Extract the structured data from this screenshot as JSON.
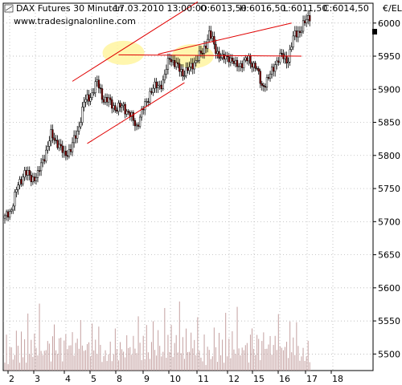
{
  "header": {
    "instrument": "DAX Futures 30 Minuten",
    "datetime": "17.03.2010 13:00:00",
    "open_label": "O:6013,50",
    "high_label": "H:6016,50",
    "low_label": "L:6011,50",
    "close_label": "C:6014,50",
    "url": "www.tradesignalonline.com",
    "close_color": "#00a000"
  },
  "chart_data": {
    "type": "candlestick",
    "currency": "€/EL",
    "ylim": [
      5475,
      6030
    ],
    "yticks": [
      5500,
      5550,
      5600,
      5650,
      5700,
      5750,
      5800,
      5850,
      5900,
      5950,
      6000
    ],
    "x_tick_labels": [
      "2",
      "3",
      "4",
      "5",
      "8",
      "9",
      "10",
      "11",
      "12",
      "15",
      "16",
      "17",
      "18"
    ],
    "grid": true,
    "colors": {
      "up_candle": "#ffffff",
      "down_candle": "#8b0000",
      "trendline": "#e00000",
      "highlight": "#fff5a0",
      "volume": "#c4a0a0",
      "grid": "#aaaaaa"
    },
    "price_path": [
      [
        0,
        5705
      ],
      [
        4,
        5720
      ],
      [
        8,
        5755
      ],
      [
        12,
        5775
      ],
      [
        16,
        5765
      ],
      [
        20,
        5770
      ],
      [
        24,
        5800
      ],
      [
        28,
        5830
      ],
      [
        32,
        5820
      ],
      [
        36,
        5800
      ],
      [
        40,
        5810
      ],
      [
        44,
        5835
      ],
      [
        48,
        5880
      ],
      [
        52,
        5890
      ],
      [
        56,
        5910
      ],
      [
        60,
        5885
      ],
      [
        64,
        5880
      ],
      [
        68,
        5870
      ],
      [
        72,
        5875
      ],
      [
        76,
        5860
      ],
      [
        80,
        5845
      ],
      [
        84,
        5870
      ],
      [
        88,
        5895
      ],
      [
        92,
        5905
      ],
      [
        96,
        5910
      ],
      [
        100,
        5950
      ],
      [
        104,
        5935
      ],
      [
        108,
        5925
      ],
      [
        112,
        5930
      ],
      [
        116,
        5945
      ],
      [
        120,
        5955
      ],
      [
        124,
        5985
      ],
      [
        128,
        5960
      ],
      [
        132,
        5945
      ],
      [
        136,
        5950
      ],
      [
        140,
        5935
      ],
      [
        144,
        5940
      ],
      [
        148,
        5945
      ],
      [
        152,
        5935
      ],
      [
        156,
        5905
      ],
      [
        160,
        5915
      ],
      [
        164,
        5940
      ],
      [
        168,
        5950
      ],
      [
        172,
        5945
      ],
      [
        176,
        5985
      ],
      [
        180,
        5990
      ],
      [
        184,
        6010
      ],
      [
        186,
        6014
      ]
    ],
    "volume": [
      12,
      30,
      8,
      20,
      25,
      10,
      15,
      40,
      22,
      9,
      33,
      18,
      26,
      11,
      48,
      19,
      27,
      14,
      35,
      21,
      16,
      58,
      24,
      13,
      29,
      17,
      38,
      23,
      10,
      31,
      45,
      20,
      15,
      36,
      28,
      12,
      25,
      52,
      18,
      30,
      22,
      40,
      14,
      26,
      33,
      19,
      60,
      21,
      28,
      17,
      35,
      24,
      16,
      42,
      20,
      30,
      15,
      48,
      22,
      11
    ],
    "trendlines": [
      {
        "from": [
          41,
          5912
        ],
        "to": [
          117,
          6032
        ]
      },
      {
        "from": [
          50,
          5818
        ],
        "to": [
          109,
          5910
        ]
      },
      {
        "from": [
          69,
          5952
        ],
        "to": [
          180,
          5950
        ]
      },
      {
        "from": [
          93,
          5953
        ],
        "to": [
          174,
          6000
        ]
      }
    ],
    "highlights": [
      {
        "cx": 72,
        "cy": 5955
      },
      {
        "cx": 114,
        "cy": 5950
      }
    ]
  }
}
